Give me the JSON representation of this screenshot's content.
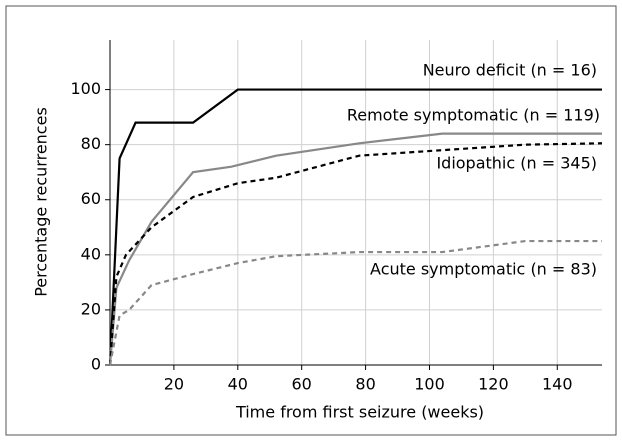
{
  "chart_data": {
    "type": "line",
    "xlabel": "Time from first seizure (weeks)",
    "ylabel": "Percentage recurrences",
    "xlim": [
      0,
      154
    ],
    "ylim": [
      0,
      118
    ],
    "xticks": [
      20,
      40,
      60,
      80,
      100,
      120,
      140
    ],
    "yticks": [
      0,
      20,
      40,
      60,
      80,
      100
    ],
    "grid": true,
    "series": [
      {
        "name": "Neuro deficit (n = 16)",
        "color": "#000000",
        "dash": false,
        "x": [
          0,
          3,
          8,
          26,
          40,
          154
        ],
        "values": [
          0,
          75,
          88,
          88,
          100,
          100
        ]
      },
      {
        "name": "Remote symptomatic (n = 119)",
        "color": "#888888",
        "dash": false,
        "x": [
          0,
          2,
          6,
          13,
          26,
          38,
          52,
          78,
          104,
          154
        ],
        "values": [
          0,
          28,
          38,
          52,
          70,
          72,
          76,
          80.5,
          84,
          84
        ]
      },
      {
        "name": "Idiopathic (n = 345)",
        "color": "#000000",
        "dash": true,
        "x": [
          0,
          2,
          5,
          13,
          26,
          40,
          52,
          78,
          104,
          130,
          154
        ],
        "values": [
          0,
          32,
          40,
          50,
          61,
          66,
          68,
          76,
          78,
          80,
          80.5
        ]
      },
      {
        "name": "Acute symptomatic (n = 83)",
        "color": "#888888",
        "dash": true,
        "x": [
          0,
          3,
          6,
          13,
          26,
          40,
          52,
          78,
          104,
          130,
          154
        ],
        "values": [
          0,
          18,
          20,
          29,
          33,
          37,
          39.5,
          41,
          41,
          45,
          45
        ]
      }
    ]
  }
}
